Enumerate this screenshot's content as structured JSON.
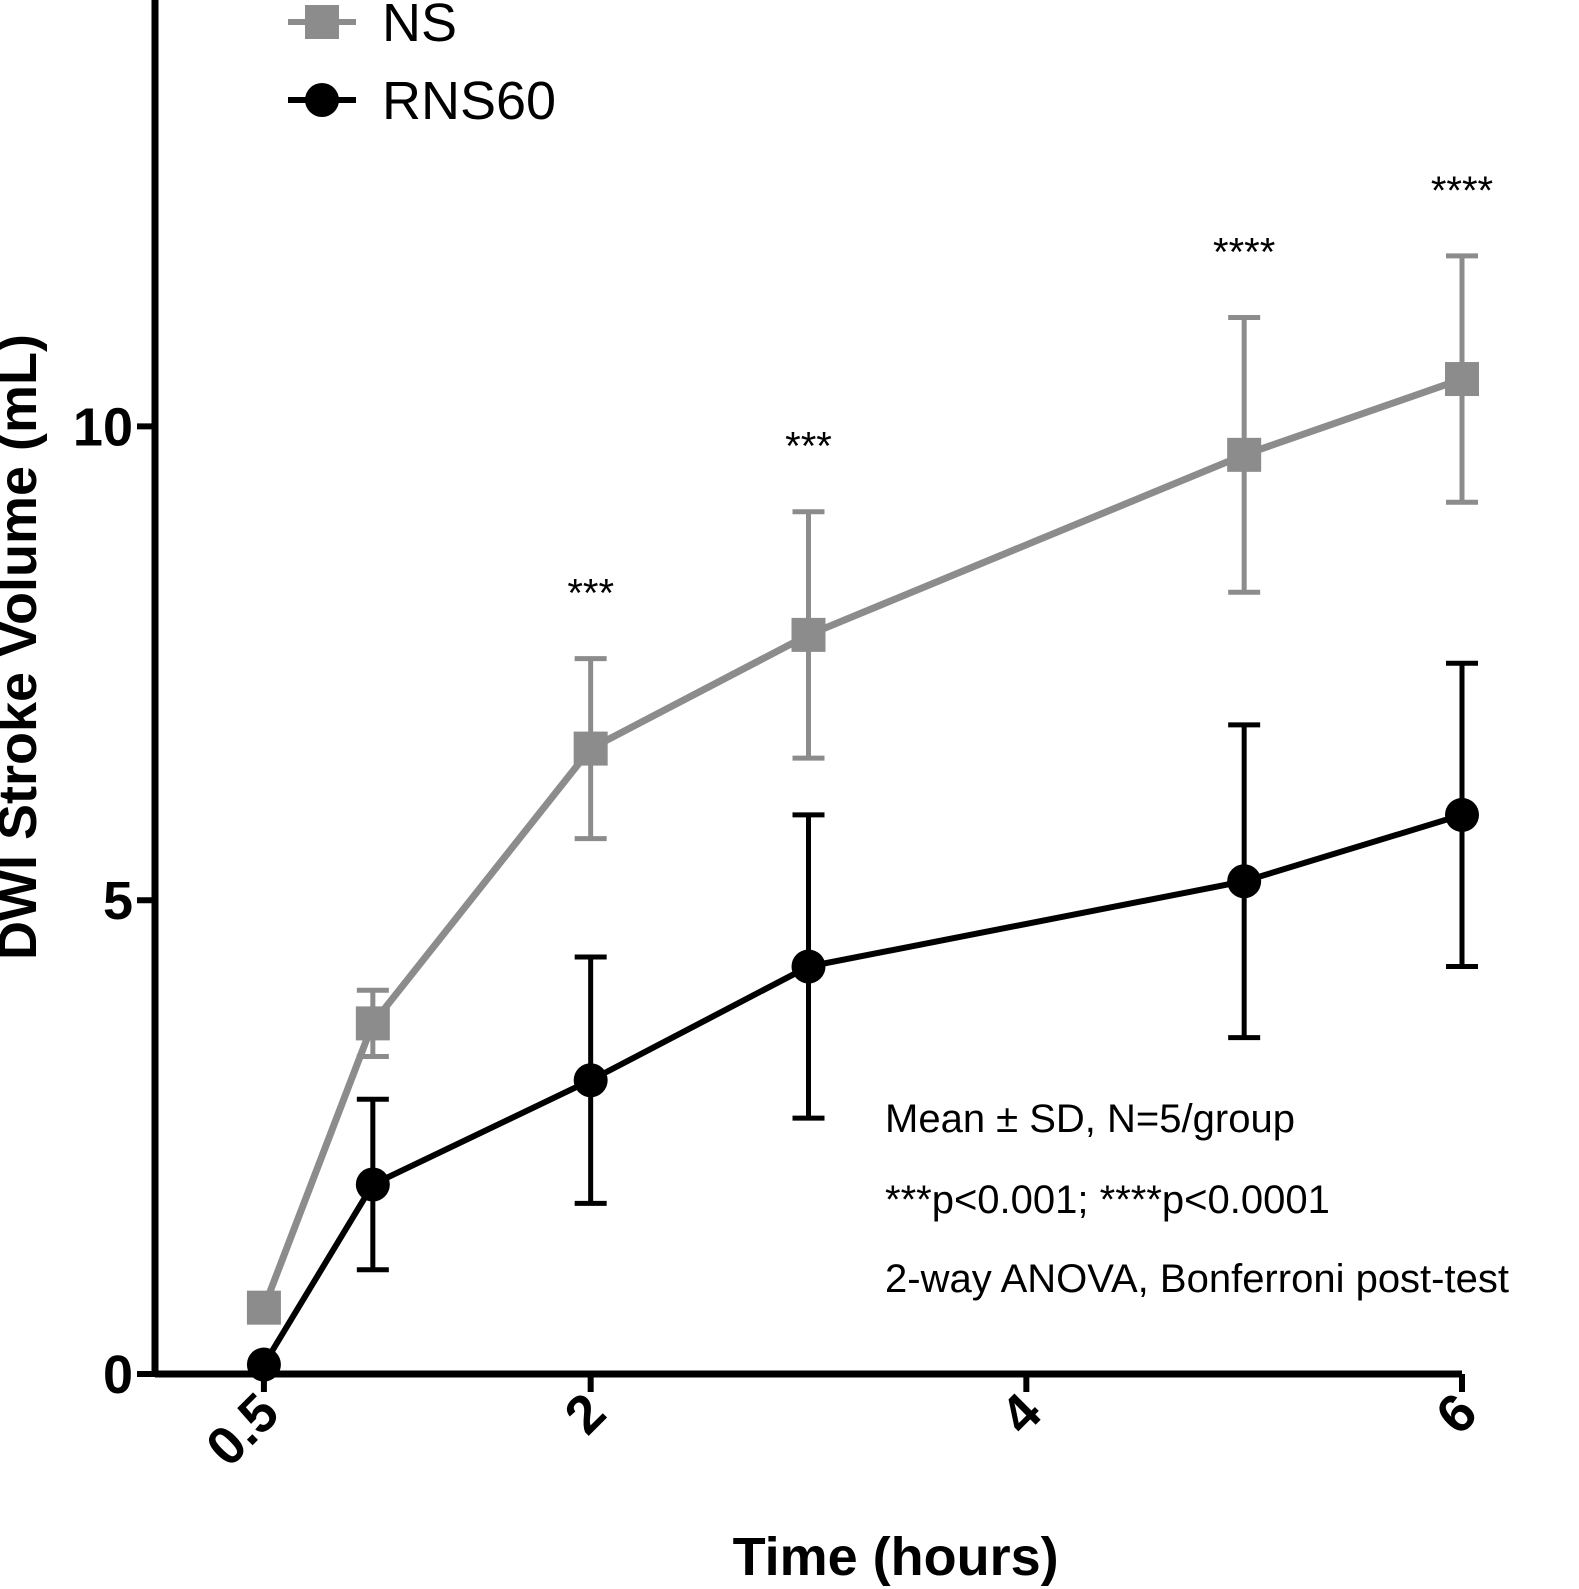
{
  "chart_data": {
    "type": "line",
    "title": "",
    "xlabel": "Time (hours)",
    "ylabel": "DWI Stroke Volume (mL)",
    "x_ticks": [
      "0.5",
      "2",
      "4",
      "6"
    ],
    "y_ticks": [
      "0",
      "5",
      "10"
    ],
    "xlim": [
      0,
      6
    ],
    "ylim": [
      0,
      14.5
    ],
    "legend_position": "top-left",
    "x": [
      0.5,
      1,
      2,
      3,
      5,
      6
    ],
    "series": [
      {
        "name": "NS",
        "color": "#8c8c8c",
        "marker": "square",
        "values": [
          0.7,
          3.7,
          6.6,
          7.8,
          9.7,
          10.5
        ],
        "errors": [
          0,
          0.35,
          0.95,
          1.3,
          1.45,
          1.3
        ]
      },
      {
        "name": "RNS60",
        "color": "#000000",
        "marker": "circle",
        "values": [
          0.1,
          2.0,
          3.1,
          4.3,
          5.2,
          5.9
        ],
        "errors": [
          0,
          0.9,
          1.3,
          1.6,
          1.65,
          1.6
        ]
      }
    ],
    "significance": [
      {
        "x": 2,
        "label": "***"
      },
      {
        "x": 3,
        "label": "***"
      },
      {
        "x": 5,
        "label": "****"
      },
      {
        "x": 6,
        "label": "****"
      }
    ],
    "annotations": [
      "Mean ± SD, N=5/group",
      "***p<0.001; ****p<0.0001",
      "2-way ANOVA, Bonferroni post-test"
    ]
  }
}
